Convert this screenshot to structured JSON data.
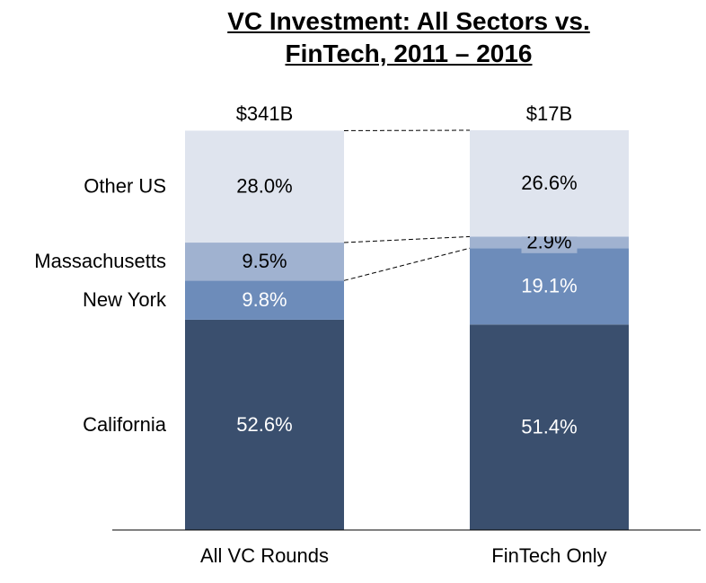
{
  "chart_data": {
    "type": "stacked-bar",
    "title": "VC Investment: All Sectors vs. FinTech, 2011 – 2016",
    "categories": [
      "All VC Rounds",
      "FinTech Only"
    ],
    "series": [
      {
        "name": "California",
        "color": "#3a4f6e",
        "label_color": "#ffffff",
        "values": [
          52.6,
          51.4
        ],
        "value_labels": [
          "52.6%",
          "51.4%"
        ]
      },
      {
        "name": "New York",
        "color": "#6d8cba",
        "label_color": "#ffffff",
        "values": [
          9.8,
          19.1
        ],
        "value_labels": [
          "9.8%",
          "19.1%"
        ]
      },
      {
        "name": "Massachusetts",
        "color": "#a0b2d0",
        "label_color": "#000000",
        "values": [
          9.5,
          2.9
        ],
        "value_labels": [
          "9.5%",
          "2.9%"
        ]
      },
      {
        "name": "Other US",
        "color": "#dfe4ee",
        "label_color": "#000000",
        "values": [
          28.0,
          26.6
        ],
        "value_labels": [
          "28.0%",
          "26.6%"
        ]
      }
    ],
    "totals": {
      "values": [
        341,
        17
      ],
      "value_labels": [
        "$341B",
        "$17B"
      ]
    },
    "ylim": [
      0,
      100
    ]
  }
}
